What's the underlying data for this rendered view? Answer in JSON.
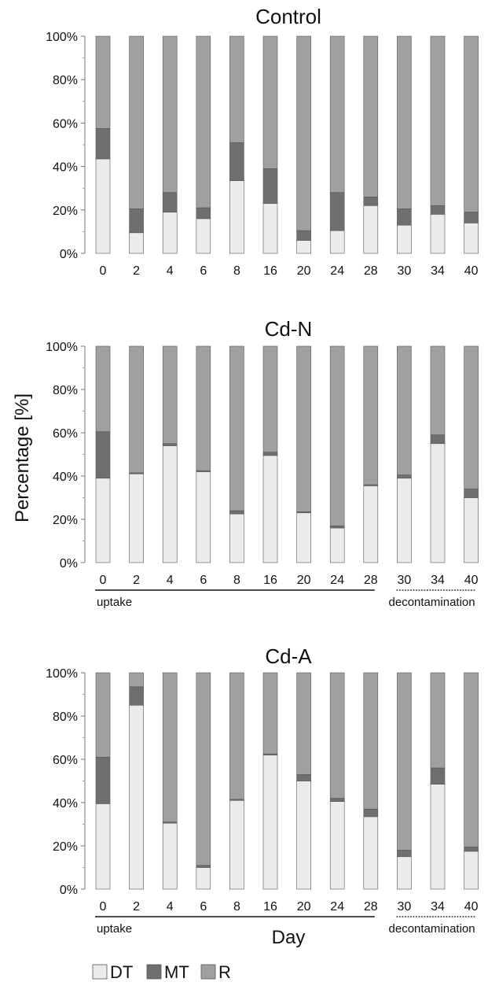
{
  "y_axis_label": "Percentage [%]",
  "x_axis_label": "Day",
  "colors": {
    "DT": "#ebebeb",
    "MT": "#6f6f6f",
    "R": "#a0a0a0",
    "outline": "#555555"
  },
  "chart_data": [
    {
      "type": "bar",
      "stacked": true,
      "title": "Control",
      "categories": [
        "0",
        "2",
        "4",
        "6",
        "8",
        "16",
        "20",
        "24",
        "28",
        "30",
        "34",
        "40"
      ],
      "ylim": [
        0,
        100
      ],
      "yticks": [
        "0%",
        "20%",
        "40%",
        "60%",
        "80%",
        "100%"
      ],
      "series": [
        {
          "name": "DT",
          "values": [
            43.5,
            9.5,
            19,
            16,
            33.5,
            23,
            6,
            10.5,
            22,
            13,
            18,
            14
          ]
        },
        {
          "name": "MT",
          "values": [
            14,
            11,
            9,
            5,
            17.5,
            16,
            4.5,
            17.5,
            4,
            7.5,
            4,
            5
          ]
        },
        {
          "name": "R",
          "values": [
            42.5,
            79.5,
            72,
            79,
            49,
            61,
            89.5,
            72,
            74,
            79.5,
            78,
            81
          ]
        }
      ]
    },
    {
      "type": "bar",
      "stacked": true,
      "title": "Cd-N",
      "categories": [
        "0",
        "2",
        "4",
        "6",
        "8",
        "16",
        "20",
        "24",
        "28",
        "30",
        "34",
        "40"
      ],
      "ylim": [
        0,
        100
      ],
      "yticks": [
        "0%",
        "20%",
        "40%",
        "60%",
        "80%",
        "100%"
      ],
      "phases": [
        {
          "label": "uptake",
          "from": "0",
          "to": "28",
          "line": "solid"
        },
        {
          "label": "decontamination",
          "from": "30",
          "to": "40",
          "line": "dotted"
        }
      ],
      "series": [
        {
          "name": "DT",
          "values": [
            39,
            41,
            54,
            42,
            22.5,
            49.5,
            23,
            16,
            35.5,
            39,
            55,
            30
          ]
        },
        {
          "name": "MT",
          "values": [
            21.5,
            0.5,
            1,
            0.5,
            1.5,
            1.5,
            0.5,
            1,
            0.5,
            1.5,
            4,
            4
          ]
        },
        {
          "name": "R",
          "values": [
            39.5,
            58.5,
            45,
            57.5,
            76,
            49,
            76.5,
            83,
            64,
            59.5,
            41,
            66
          ]
        }
      ]
    },
    {
      "type": "bar",
      "stacked": true,
      "title": "Cd-A",
      "categories": [
        "0",
        "2",
        "4",
        "6",
        "8",
        "16",
        "20",
        "24",
        "28",
        "30",
        "34",
        "40"
      ],
      "ylim": [
        0,
        100
      ],
      "yticks": [
        "0%",
        "20%",
        "40%",
        "60%",
        "80%",
        "100%"
      ],
      "phases": [
        {
          "label": "uptake",
          "from": "0",
          "to": "28",
          "line": "solid"
        },
        {
          "label": "decontamination",
          "from": "30",
          "to": "40",
          "line": "dotted"
        }
      ],
      "series": [
        {
          "name": "DT",
          "values": [
            39.5,
            85,
            30.5,
            10,
            41,
            62,
            50,
            40.5,
            33.5,
            15,
            48.5,
            17.5
          ]
        },
        {
          "name": "MT",
          "values": [
            21.5,
            8.5,
            0.5,
            1,
            0.5,
            0.5,
            3,
            1.5,
            3.5,
            3,
            7.5,
            2
          ]
        },
        {
          "name": "R",
          "values": [
            39,
            6.5,
            69,
            89,
            58.5,
            37.5,
            47,
            58,
            63,
            82,
            44,
            80.5
          ]
        }
      ]
    }
  ],
  "legend": [
    {
      "name": "DT"
    },
    {
      "name": "MT"
    },
    {
      "name": "R"
    }
  ]
}
